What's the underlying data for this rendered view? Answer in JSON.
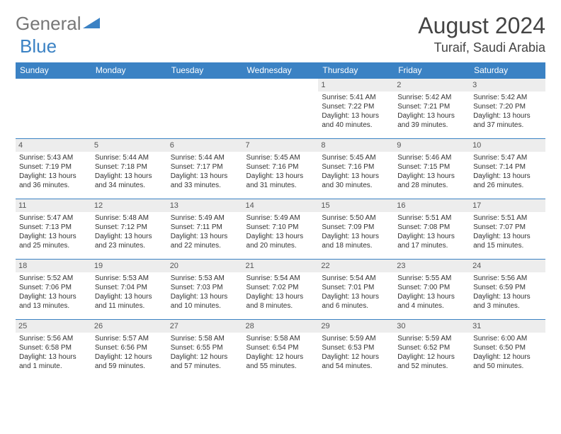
{
  "logo": {
    "general": "General",
    "blue": "Blue"
  },
  "month_title": "August 2024",
  "location": "Turaif, Saudi Arabia",
  "colors": {
    "header_bg": "#3b82c4",
    "header_text": "#ffffff",
    "border": "#3b82c4",
    "daynum_bg": "#ededed",
    "logo_gray": "#777777",
    "logo_blue": "#3b82c4"
  },
  "weekdays": [
    "Sunday",
    "Monday",
    "Tuesday",
    "Wednesday",
    "Thursday",
    "Friday",
    "Saturday"
  ],
  "weeks": [
    [
      null,
      null,
      null,
      null,
      {
        "d": "1",
        "sr": "5:41 AM",
        "ss": "7:22 PM",
        "dl": "13 hours and 40 minutes."
      },
      {
        "d": "2",
        "sr": "5:42 AM",
        "ss": "7:21 PM",
        "dl": "13 hours and 39 minutes."
      },
      {
        "d": "3",
        "sr": "5:42 AM",
        "ss": "7:20 PM",
        "dl": "13 hours and 37 minutes."
      }
    ],
    [
      {
        "d": "4",
        "sr": "5:43 AM",
        "ss": "7:19 PM",
        "dl": "13 hours and 36 minutes."
      },
      {
        "d": "5",
        "sr": "5:44 AM",
        "ss": "7:18 PM",
        "dl": "13 hours and 34 minutes."
      },
      {
        "d": "6",
        "sr": "5:44 AM",
        "ss": "7:17 PM",
        "dl": "13 hours and 33 minutes."
      },
      {
        "d": "7",
        "sr": "5:45 AM",
        "ss": "7:16 PM",
        "dl": "13 hours and 31 minutes."
      },
      {
        "d": "8",
        "sr": "5:45 AM",
        "ss": "7:16 PM",
        "dl": "13 hours and 30 minutes."
      },
      {
        "d": "9",
        "sr": "5:46 AM",
        "ss": "7:15 PM",
        "dl": "13 hours and 28 minutes."
      },
      {
        "d": "10",
        "sr": "5:47 AM",
        "ss": "7:14 PM",
        "dl": "13 hours and 26 minutes."
      }
    ],
    [
      {
        "d": "11",
        "sr": "5:47 AM",
        "ss": "7:13 PM",
        "dl": "13 hours and 25 minutes."
      },
      {
        "d": "12",
        "sr": "5:48 AM",
        "ss": "7:12 PM",
        "dl": "13 hours and 23 minutes."
      },
      {
        "d": "13",
        "sr": "5:49 AM",
        "ss": "7:11 PM",
        "dl": "13 hours and 22 minutes."
      },
      {
        "d": "14",
        "sr": "5:49 AM",
        "ss": "7:10 PM",
        "dl": "13 hours and 20 minutes."
      },
      {
        "d": "15",
        "sr": "5:50 AM",
        "ss": "7:09 PM",
        "dl": "13 hours and 18 minutes."
      },
      {
        "d": "16",
        "sr": "5:51 AM",
        "ss": "7:08 PM",
        "dl": "13 hours and 17 minutes."
      },
      {
        "d": "17",
        "sr": "5:51 AM",
        "ss": "7:07 PM",
        "dl": "13 hours and 15 minutes."
      }
    ],
    [
      {
        "d": "18",
        "sr": "5:52 AM",
        "ss": "7:06 PM",
        "dl": "13 hours and 13 minutes."
      },
      {
        "d": "19",
        "sr": "5:53 AM",
        "ss": "7:04 PM",
        "dl": "13 hours and 11 minutes."
      },
      {
        "d": "20",
        "sr": "5:53 AM",
        "ss": "7:03 PM",
        "dl": "13 hours and 10 minutes."
      },
      {
        "d": "21",
        "sr": "5:54 AM",
        "ss": "7:02 PM",
        "dl": "13 hours and 8 minutes."
      },
      {
        "d": "22",
        "sr": "5:54 AM",
        "ss": "7:01 PM",
        "dl": "13 hours and 6 minutes."
      },
      {
        "d": "23",
        "sr": "5:55 AM",
        "ss": "7:00 PM",
        "dl": "13 hours and 4 minutes."
      },
      {
        "d": "24",
        "sr": "5:56 AM",
        "ss": "6:59 PM",
        "dl": "13 hours and 3 minutes."
      }
    ],
    [
      {
        "d": "25",
        "sr": "5:56 AM",
        "ss": "6:58 PM",
        "dl": "13 hours and 1 minute."
      },
      {
        "d": "26",
        "sr": "5:57 AM",
        "ss": "6:56 PM",
        "dl": "12 hours and 59 minutes."
      },
      {
        "d": "27",
        "sr": "5:58 AM",
        "ss": "6:55 PM",
        "dl": "12 hours and 57 minutes."
      },
      {
        "d": "28",
        "sr": "5:58 AM",
        "ss": "6:54 PM",
        "dl": "12 hours and 55 minutes."
      },
      {
        "d": "29",
        "sr": "5:59 AM",
        "ss": "6:53 PM",
        "dl": "12 hours and 54 minutes."
      },
      {
        "d": "30",
        "sr": "5:59 AM",
        "ss": "6:52 PM",
        "dl": "12 hours and 52 minutes."
      },
      {
        "d": "31",
        "sr": "6:00 AM",
        "ss": "6:50 PM",
        "dl": "12 hours and 50 minutes."
      }
    ]
  ],
  "labels": {
    "sunrise": "Sunrise:",
    "sunset": "Sunset:",
    "daylight": "Daylight:"
  }
}
